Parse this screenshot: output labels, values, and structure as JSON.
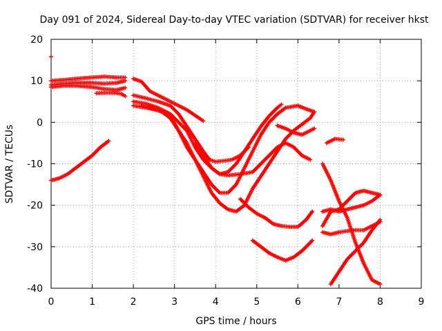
{
  "chart_data": {
    "type": "scatter",
    "title": "Day 091 of 2024, Sidereal Day-to-day VTEC variation (SDTVAR) for receiver hkst",
    "xlabel": "GPS time / hours",
    "ylabel": "SDTVAR / TECUs",
    "xlim": [
      0,
      9
    ],
    "ylim": [
      -40,
      20
    ],
    "xticks": [
      "0",
      "1",
      "2",
      "3",
      "4",
      "5",
      "6",
      "7",
      "8",
      "9"
    ],
    "yticks": [
      "20",
      "10",
      "0",
      "-10",
      "-20",
      "-30",
      "-40"
    ],
    "grid": true,
    "marker": "+",
    "color": "#ff0000",
    "series": [
      {
        "name": "s1",
        "points": [
          [
            0,
            15.8
          ]
        ]
      },
      {
        "name": "s2",
        "points": [
          [
            0,
            -14
          ],
          [
            0.2,
            -13.5
          ],
          [
            0.4,
            -12.5
          ],
          [
            0.6,
            -11
          ],
          [
            0.8,
            -9.5
          ],
          [
            1,
            -8
          ],
          [
            1.2,
            -6
          ],
          [
            1.4,
            -4.5
          ]
        ]
      },
      {
        "name": "s3",
        "points": [
          [
            0,
            10
          ],
          [
            0.3,
            10.2
          ],
          [
            0.6,
            10.5
          ],
          [
            1,
            10.8
          ],
          [
            1.3,
            11
          ],
          [
            1.6,
            10.8
          ],
          [
            1.8,
            10.8
          ]
        ]
      },
      {
        "name": "s4",
        "points": [
          [
            0,
            9
          ],
          [
            0.3,
            9.3
          ],
          [
            0.6,
            9.5
          ],
          [
            1,
            9.5
          ],
          [
            1.3,
            9.3
          ],
          [
            1.6,
            9.5
          ],
          [
            1.8,
            10
          ]
        ]
      },
      {
        "name": "s5",
        "points": [
          [
            0,
            8.5
          ],
          [
            0.3,
            8.8
          ],
          [
            0.6,
            8.8
          ],
          [
            1,
            8.5
          ],
          [
            1.3,
            8
          ],
          [
            1.6,
            7.8
          ],
          [
            1.8,
            8.3
          ]
        ]
      },
      {
        "name": "s6",
        "points": [
          [
            1.1,
            7
          ],
          [
            1.3,
            7.1
          ],
          [
            1.5,
            7.1
          ],
          [
            1.7,
            6.9
          ],
          [
            1.8,
            6.3
          ]
        ]
      },
      {
        "name": "s7",
        "points": [
          [
            2,
            10.5
          ],
          [
            2.2,
            9.8
          ],
          [
            2.4,
            7.5
          ],
          [
            2.7,
            6
          ],
          [
            3,
            4.5
          ],
          [
            3.3,
            3
          ],
          [
            3.6,
            1
          ],
          [
            3.7,
            0.3
          ]
        ]
      },
      {
        "name": "s8",
        "points": [
          [
            2,
            6.5
          ],
          [
            2.3,
            5.8
          ],
          [
            2.6,
            5
          ],
          [
            2.9,
            4
          ],
          [
            3.1,
            2
          ],
          [
            3.3,
            -1
          ],
          [
            3.5,
            -4
          ],
          [
            3.7,
            -7
          ],
          [
            3.85,
            -9
          ],
          [
            4,
            -9.5
          ],
          [
            4.2,
            -9.3
          ],
          [
            4.4,
            -9
          ],
          [
            4.6,
            -8
          ],
          [
            4.8,
            -6
          ]
        ]
      },
      {
        "name": "s9",
        "points": [
          [
            2,
            5
          ],
          [
            2.3,
            4.5
          ],
          [
            2.6,
            3.5
          ],
          [
            2.9,
            2
          ],
          [
            3.1,
            0
          ],
          [
            3.3,
            -2
          ],
          [
            3.5,
            -6
          ],
          [
            3.7,
            -9
          ],
          [
            3.9,
            -11
          ],
          [
            4.1,
            -12.5
          ],
          [
            4.3,
            -12.8
          ],
          [
            4.6,
            -12.5
          ],
          [
            4.9,
            -12
          ],
          [
            5.1,
            -10
          ],
          [
            5.3,
            -8
          ],
          [
            5.5,
            -6
          ],
          [
            5.7,
            -5
          ],
          [
            5.9,
            -6
          ],
          [
            6.1,
            -8
          ],
          [
            6.3,
            -9
          ]
        ]
      },
      {
        "name": "s10",
        "points": [
          [
            2,
            4
          ],
          [
            2.3,
            3.5
          ],
          [
            2.6,
            3
          ],
          [
            2.9,
            1.5
          ],
          [
            3.1,
            -2
          ],
          [
            3.3,
            -6
          ],
          [
            3.5,
            -9
          ],
          [
            3.7,
            -12
          ],
          [
            3.9,
            -15
          ],
          [
            4.1,
            -17
          ],
          [
            4.3,
            -17
          ],
          [
            4.5,
            -15
          ],
          [
            4.7,
            -11
          ],
          [
            4.9,
            -7
          ],
          [
            5.1,
            -3
          ],
          [
            5.3,
            0
          ],
          [
            5.5,
            2
          ],
          [
            5.7,
            3.5
          ],
          [
            6,
            4
          ],
          [
            6.2,
            3.2
          ],
          [
            6.4,
            2.5
          ]
        ]
      },
      {
        "name": "s11",
        "points": [
          [
            2.2,
            4
          ],
          [
            2.4,
            3.5
          ],
          [
            2.7,
            2.5
          ],
          [
            2.9,
            1
          ],
          [
            3.1,
            -2
          ],
          [
            3.3,
            -5
          ],
          [
            3.5,
            -9
          ],
          [
            3.7,
            -13
          ],
          [
            3.9,
            -17
          ],
          [
            4.1,
            -19.5
          ],
          [
            4.3,
            -21
          ],
          [
            4.5,
            -21.5
          ],
          [
            4.7,
            -20
          ],
          [
            4.9,
            -16
          ],
          [
            5.1,
            -13
          ],
          [
            5.3,
            -10
          ],
          [
            5.5,
            -7
          ],
          [
            5.7,
            -4
          ],
          [
            5.9,
            -2
          ],
          [
            6.1,
            -0.5
          ],
          [
            6.3,
            1
          ],
          [
            6.4,
            2.5
          ]
        ]
      },
      {
        "name": "s12",
        "points": [
          [
            3.5,
            -5
          ],
          [
            3.7,
            -8
          ],
          [
            3.9,
            -11
          ],
          [
            4.1,
            -12.5
          ],
          [
            4.3,
            -12
          ],
          [
            4.5,
            -10
          ],
          [
            4.7,
            -7
          ],
          [
            4.9,
            -4
          ],
          [
            5.1,
            -1
          ],
          [
            5.3,
            1.5
          ],
          [
            5.5,
            3.5
          ],
          [
            5.6,
            4.3
          ]
        ]
      },
      {
        "name": "s13",
        "points": [
          [
            5.5,
            -0.8
          ],
          [
            5.7,
            -1.5
          ],
          [
            5.9,
            -2.5
          ],
          [
            6.1,
            -3
          ],
          [
            6.3,
            -2
          ],
          [
            6.4,
            -1.5
          ]
        ]
      },
      {
        "name": "s14",
        "points": [
          [
            4.6,
            -18.5
          ],
          [
            4.8,
            -20.5
          ],
          [
            5,
            -22
          ],
          [
            5.2,
            -23
          ],
          [
            5.4,
            -24.5
          ],
          [
            5.6,
            -25
          ],
          [
            5.8,
            -25.2
          ],
          [
            6,
            -25.2
          ],
          [
            6.2,
            -23.5
          ],
          [
            6.35,
            -21.5
          ]
        ]
      },
      {
        "name": "s15",
        "points": [
          [
            4.9,
            -28.5
          ],
          [
            5.1,
            -30
          ],
          [
            5.3,
            -31.5
          ],
          [
            5.5,
            -32.5
          ],
          [
            5.7,
            -33.3
          ],
          [
            5.9,
            -32.5
          ],
          [
            6.1,
            -31
          ],
          [
            6.35,
            -28.5
          ]
        ]
      },
      {
        "name": "s16",
        "points": [
          [
            6.6,
            -10
          ],
          [
            6.8,
            -14
          ],
          [
            7,
            -19
          ],
          [
            7.2,
            -23
          ],
          [
            7.4,
            -29
          ],
          [
            7.6,
            -34
          ],
          [
            7.8,
            -38
          ],
          [
            8,
            -39
          ]
        ]
      },
      {
        "name": "s17",
        "points": [
          [
            6.7,
            -5
          ],
          [
            6.9,
            -4
          ],
          [
            7.1,
            -4.2
          ]
        ]
      },
      {
        "name": "s18",
        "points": [
          [
            6.6,
            -25
          ],
          [
            6.8,
            -21.5
          ],
          [
            7,
            -21
          ],
          [
            7.2,
            -19
          ],
          [
            7.4,
            -17
          ],
          [
            7.6,
            -16.5
          ],
          [
            7.8,
            -17
          ],
          [
            8,
            -17.5
          ]
        ]
      },
      {
        "name": "s19",
        "points": [
          [
            6.6,
            -26.5
          ],
          [
            6.8,
            -27
          ],
          [
            7,
            -26.5
          ],
          [
            7.2,
            -26.2
          ],
          [
            7.4,
            -26
          ],
          [
            7.6,
            -26
          ],
          [
            7.8,
            -25
          ],
          [
            8,
            -24
          ]
        ]
      },
      {
        "name": "s20",
        "points": [
          [
            6.6,
            -21.5
          ],
          [
            6.8,
            -21
          ],
          [
            7,
            -21.5
          ],
          [
            7.2,
            -21
          ],
          [
            7.4,
            -20.5
          ],
          [
            7.6,
            -20
          ],
          [
            7.8,
            -19
          ],
          [
            8,
            -17.5
          ]
        ]
      },
      {
        "name": "s21",
        "points": [
          [
            6.8,
            -39
          ],
          [
            7,
            -36
          ],
          [
            7.2,
            -33
          ],
          [
            7.4,
            -31
          ],
          [
            7.6,
            -29
          ],
          [
            7.8,
            -26
          ],
          [
            8,
            -23.5
          ]
        ]
      }
    ]
  }
}
